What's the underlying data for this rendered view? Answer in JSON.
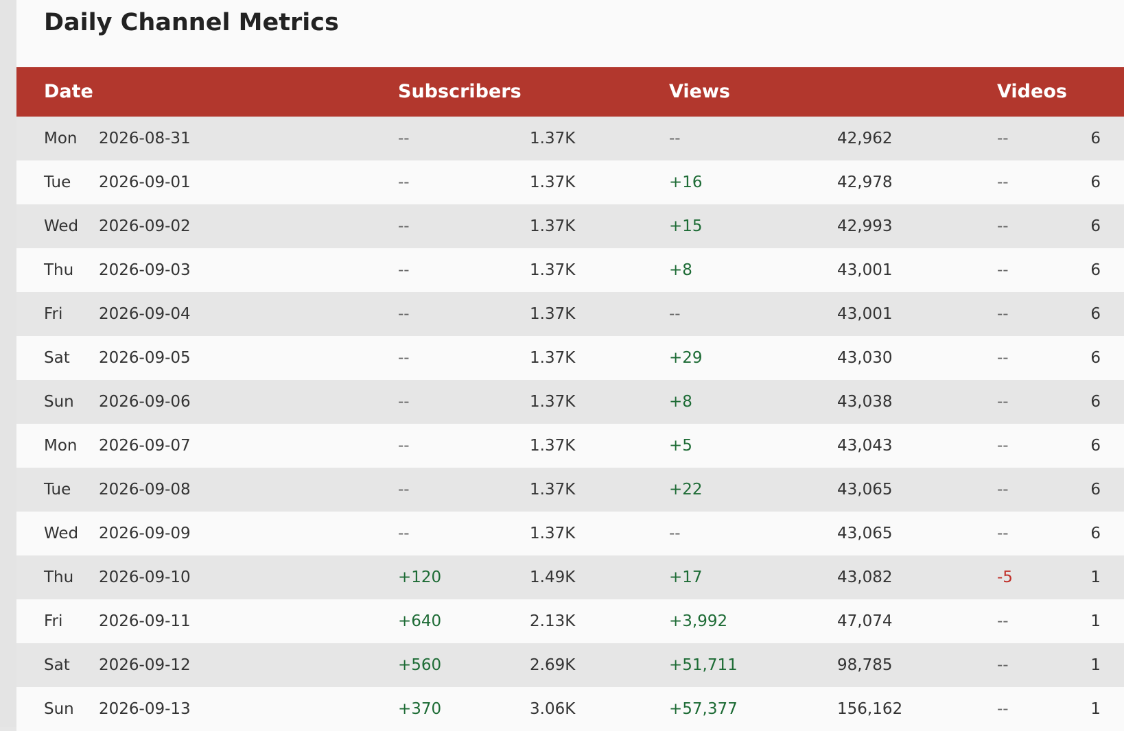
{
  "page": {
    "title": "Daily Channel Metrics"
  },
  "columns": {
    "date": "Date",
    "subscribers": "Subscribers",
    "views": "Views",
    "videos": "Videos"
  },
  "colors": {
    "header_bg": "#b2372d",
    "positive": "#1d6b35",
    "negative": "#c0302a",
    "row_odd": "#e6e6e6",
    "row_even": "#fafafa"
  },
  "rows": [
    {
      "day": "Mon",
      "date": "2026-08-31",
      "sub_delta": "--",
      "sub_total": "1.37K",
      "views_delta": "--",
      "views_total": "42,962",
      "videos_delta": "--",
      "videos_total": "6"
    },
    {
      "day": "Tue",
      "date": "2026-09-01",
      "sub_delta": "--",
      "sub_total": "1.37K",
      "views_delta": "+16",
      "views_total": "42,978",
      "videos_delta": "--",
      "videos_total": "6"
    },
    {
      "day": "Wed",
      "date": "2026-09-02",
      "sub_delta": "--",
      "sub_total": "1.37K",
      "views_delta": "+15",
      "views_total": "42,993",
      "videos_delta": "--",
      "videos_total": "6"
    },
    {
      "day": "Thu",
      "date": "2026-09-03",
      "sub_delta": "--",
      "sub_total": "1.37K",
      "views_delta": "+8",
      "views_total": "43,001",
      "videos_delta": "--",
      "videos_total": "6"
    },
    {
      "day": "Fri",
      "date": "2026-09-04",
      "sub_delta": "--",
      "sub_total": "1.37K",
      "views_delta": "--",
      "views_total": "43,001",
      "videos_delta": "--",
      "videos_total": "6"
    },
    {
      "day": "Sat",
      "date": "2026-09-05",
      "sub_delta": "--",
      "sub_total": "1.37K",
      "views_delta": "+29",
      "views_total": "43,030",
      "videos_delta": "--",
      "videos_total": "6"
    },
    {
      "day": "Sun",
      "date": "2026-09-06",
      "sub_delta": "--",
      "sub_total": "1.37K",
      "views_delta": "+8",
      "views_total": "43,038",
      "videos_delta": "--",
      "videos_total": "6"
    },
    {
      "day": "Mon",
      "date": "2026-09-07",
      "sub_delta": "--",
      "sub_total": "1.37K",
      "views_delta": "+5",
      "views_total": "43,043",
      "videos_delta": "--",
      "videos_total": "6"
    },
    {
      "day": "Tue",
      "date": "2026-09-08",
      "sub_delta": "--",
      "sub_total": "1.37K",
      "views_delta": "+22",
      "views_total": "43,065",
      "videos_delta": "--",
      "videos_total": "6"
    },
    {
      "day": "Wed",
      "date": "2026-09-09",
      "sub_delta": "--",
      "sub_total": "1.37K",
      "views_delta": "--",
      "views_total": "43,065",
      "videos_delta": "--",
      "videos_total": "6"
    },
    {
      "day": "Thu",
      "date": "2026-09-10",
      "sub_delta": "+120",
      "sub_total": "1.49K",
      "views_delta": "+17",
      "views_total": "43,082",
      "videos_delta": "-5",
      "videos_total": "1"
    },
    {
      "day": "Fri",
      "date": "2026-09-11",
      "sub_delta": "+640",
      "sub_total": "2.13K",
      "views_delta": "+3,992",
      "views_total": "47,074",
      "videos_delta": "--",
      "videos_total": "1"
    },
    {
      "day": "Sat",
      "date": "2026-09-12",
      "sub_delta": "+560",
      "sub_total": "2.69K",
      "views_delta": "+51,711",
      "views_total": "98,785",
      "videos_delta": "--",
      "videos_total": "1"
    },
    {
      "day": "Sun",
      "date": "2026-09-13",
      "sub_delta": "+370",
      "sub_total": "3.06K",
      "views_delta": "+57,377",
      "views_total": "156,162",
      "videos_delta": "--",
      "videos_total": "1"
    }
  ]
}
